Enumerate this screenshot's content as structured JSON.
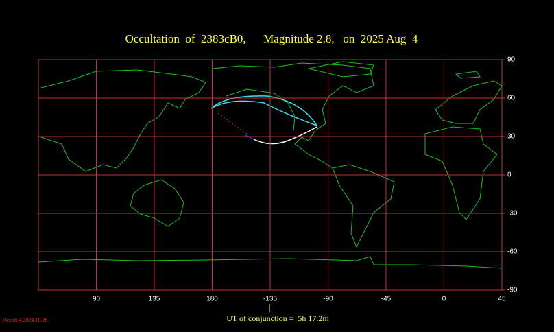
{
  "title": "Occultation  of  2383cB0,      Magnitude 2.8,   on  2025 Aug  4",
  "map": {
    "lon_ticks": [
      90,
      135,
      180,
      -135,
      -90,
      -45,
      0,
      45
    ],
    "lat_ticks": [
      90,
      60,
      30,
      0,
      -30,
      -60,
      -90
    ]
  },
  "footer": {
    "version": "Occult 4.2024.10.26",
    "conjunction": "UT of conjunction =  5h 17.2m"
  }
}
